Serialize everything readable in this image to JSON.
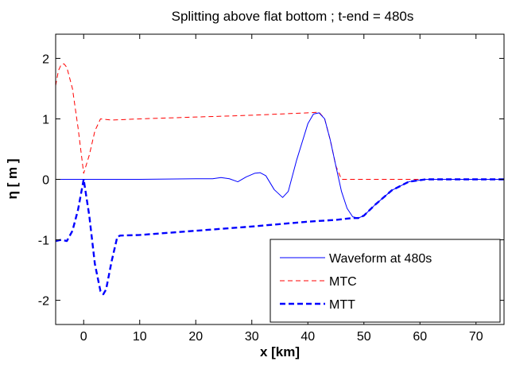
{
  "chart_data": {
    "type": "line",
    "title": "Splitting above flat bottom ; t-end = 480s",
    "xlabel": "x [km]",
    "ylabel": "η [ m ]",
    "xlim": [
      -5,
      75
    ],
    "ylim": [
      -2.4,
      2.4
    ],
    "xticks": [
      "0",
      "10",
      "20",
      "30",
      "40",
      "50",
      "60",
      "70"
    ],
    "yticks": [
      "2",
      "1",
      "0",
      "-1",
      "-2"
    ],
    "grid": false,
    "legend_position": "bottom-right",
    "series": [
      {
        "name": "Waveform at 480s",
        "style": "solid",
        "color": "#0000ff",
        "width": "thin",
        "x": [
          -5,
          0,
          10,
          20,
          23,
          24.5,
          26,
          27.5,
          29,
          30.5,
          31.5,
          32.5,
          34,
          35.5,
          36.5,
          38,
          40,
          41,
          42,
          43,
          44,
          45,
          46,
          47,
          48,
          49,
          50,
          52,
          55,
          58,
          61,
          65,
          75
        ],
        "y": [
          0.0,
          0.0,
          0.0,
          0.01,
          0.01,
          0.03,
          0.01,
          -0.04,
          0.04,
          0.1,
          0.11,
          0.06,
          -0.17,
          -0.3,
          -0.2,
          0.32,
          0.92,
          1.08,
          1.1,
          1.0,
          0.65,
          0.22,
          -0.2,
          -0.48,
          -0.62,
          -0.64,
          -0.6,
          -0.42,
          -0.18,
          -0.04,
          0.0,
          0.0,
          0.0
        ]
      },
      {
        "name": "MTC",
        "style": "dashed",
        "color": "#ff0000",
        "width": "thin",
        "x": [
          -5,
          -4.5,
          -4,
          -3.5,
          -3,
          -2,
          -1,
          0,
          1,
          2,
          3,
          5,
          10,
          20,
          30,
          40,
          42,
          43,
          44,
          45,
          46,
          47,
          48,
          50,
          60,
          75
        ],
        "y": [
          1.55,
          1.8,
          1.9,
          1.91,
          1.85,
          1.5,
          0.85,
          0.1,
          0.4,
          0.8,
          1.0,
          0.98,
          1.0,
          1.03,
          1.06,
          1.1,
          1.11,
          1.0,
          0.65,
          0.22,
          0.0,
          0.0,
          0.0,
          0.0,
          0.0,
          0.0
        ]
      },
      {
        "name": "MTT",
        "style": "dashed",
        "color": "#0000ff",
        "width": "thick",
        "x": [
          -5,
          -4,
          -3,
          -2,
          -1,
          0,
          1,
          2,
          3,
          3.5,
          4,
          5,
          6,
          6.5,
          10,
          20,
          30,
          40,
          45,
          48,
          49,
          50,
          52,
          55,
          58,
          61,
          65,
          75
        ],
        "y": [
          -1.02,
          -1.0,
          -1.02,
          -0.85,
          -0.5,
          0.0,
          -0.6,
          -1.4,
          -1.85,
          -1.9,
          -1.82,
          -1.35,
          -0.95,
          -0.93,
          -0.92,
          -0.85,
          -0.78,
          -0.7,
          -0.67,
          -0.64,
          -0.64,
          -0.6,
          -0.42,
          -0.18,
          -0.04,
          0.0,
          0.0,
          0.0
        ]
      }
    ]
  }
}
